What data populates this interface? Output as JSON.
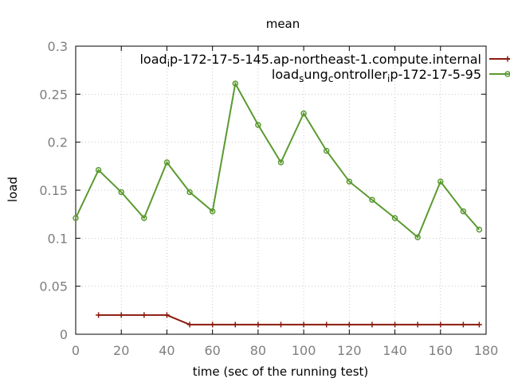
{
  "chart_data": {
    "type": "line",
    "title": "mean",
    "xlabel": "time (sec of the running test)",
    "ylabel": "load",
    "xlim": [
      0,
      180
    ],
    "ylim": [
      0,
      0.3
    ],
    "x_ticks": [
      0,
      20,
      40,
      60,
      80,
      100,
      120,
      140,
      160,
      180
    ],
    "y_ticks": [
      0,
      0.05,
      0.1,
      0.15,
      0.2,
      0.25,
      0.3
    ],
    "x_tick_labels": [
      "0",
      "20",
      "40",
      "60",
      "80",
      "100",
      "120",
      "140",
      "160",
      "180"
    ],
    "y_tick_labels": [
      "0",
      "0.05",
      "0.1",
      "0.15",
      "0.2",
      "0.25",
      "0.3"
    ],
    "grid": true,
    "legend_position": "top-right",
    "series": [
      {
        "name": "loadip-172-17-5-145.ap-northeast-1.compute.internal",
        "legend_parts": {
          "before": "load",
          "sub": "i",
          "after": "p-172-17-5-145.ap-northeast-1.compute.internal"
        },
        "color": "#8b1a0e",
        "marker": "plus",
        "x": [
          10,
          20,
          30,
          40,
          50,
          60,
          70,
          80,
          90,
          100,
          110,
          120,
          130,
          140,
          150,
          160,
          170,
          177
        ],
        "y": [
          0.02,
          0.02,
          0.02,
          0.02,
          0.01,
          0.01,
          0.01,
          0.01,
          0.01,
          0.01,
          0.01,
          0.01,
          0.01,
          0.01,
          0.01,
          0.01,
          0.01,
          0.01
        ]
      },
      {
        "name": "loadsungcontrollerip-172-17-5-95",
        "legend_parts": {
          "before": "load",
          "sub": "s",
          "after": "ung",
          "sub2": "c",
          "after2": "ontroller",
          "sub3": "i",
          "after3": "p-172-17-5-95"
        },
        "color": "#5a9a30",
        "marker": "circle",
        "x": [
          0,
          10,
          20,
          30,
          40,
          50,
          60,
          70,
          80,
          90,
          100,
          110,
          120,
          130,
          140,
          150,
          160,
          170,
          177
        ],
        "y": [
          0.121,
          0.171,
          0.148,
          0.121,
          0.179,
          0.148,
          0.128,
          0.261,
          0.218,
          0.179,
          0.23,
          0.191,
          0.159,
          0.14,
          0.121,
          0.101,
          0.159,
          0.128,
          0.109
        ]
      }
    ]
  }
}
